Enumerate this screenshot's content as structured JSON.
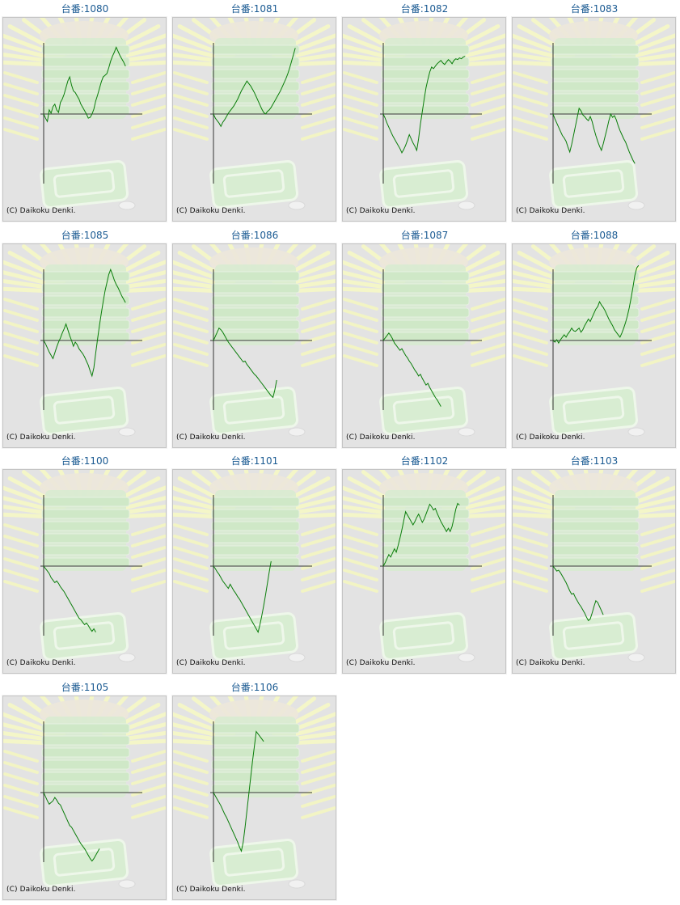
{
  "machines": [
    {
      "title": "台番:1080",
      "copyright": "(C) Daikoku Denki.",
      "series": [
        0,
        -0.5,
        -0.9,
        0.5,
        0.1,
        0.9,
        1.2,
        0.5,
        0.2,
        1.4,
        1.8,
        2.4,
        3.2,
        4.0,
        4.5,
        3.5,
        2.8,
        2.6,
        2.2,
        1.8,
        1.2,
        0.8,
        0.4,
        0.0,
        -0.5,
        -0.4,
        0.0,
        0.6,
        1.6,
        2.3,
        3.1,
        3.9,
        4.5,
        4.7,
        4.9,
        5.6,
        6.4,
        7.0,
        7.5,
        8.1,
        7.6,
        7.1,
        6.7,
        6.3,
        5.8
      ]
    },
    {
      "title": "台番:1081",
      "copyright": "(C) Daikoku Denki.",
      "series": [
        0,
        -0.5,
        -0.8,
        -1.1,
        -1.5,
        -1.0,
        -0.7,
        -0.3,
        0.1,
        0.4,
        0.7,
        1.0,
        1.4,
        1.8,
        2.3,
        2.8,
        3.2,
        3.6,
        4.0,
        3.7,
        3.4,
        3.0,
        2.6,
        2.1,
        1.6,
        1.1,
        0.6,
        0.2,
        0.0,
        0.3,
        0.5,
        0.8,
        1.2,
        1.6,
        2.0,
        2.4,
        2.8,
        3.3,
        3.8,
        4.3,
        4.9,
        5.6,
        6.4,
        7.2,
        8.0
      ]
    },
    {
      "title": "台番:1082",
      "copyright": "(C) Daikoku Denki.",
      "series": [
        0,
        -0.5,
        -1.1,
        -1.6,
        -2.1,
        -2.6,
        -3.0,
        -3.4,
        -3.8,
        -4.2,
        -4.7,
        -4.3,
        -3.8,
        -3.2,
        -2.5,
        -3.0,
        -3.5,
        -3.9,
        -4.4,
        -3.0,
        -1.2,
        0.3,
        1.8,
        3.2,
        4.2,
        5.1,
        5.7,
        5.5,
        5.8,
        6.1,
        6.3,
        6.5,
        6.2,
        6.0,
        6.3,
        6.6,
        6.4,
        6.1,
        6.5,
        6.7,
        6.6,
        6.8,
        6.7,
        6.9,
        7.0
      ]
    },
    {
      "title": "台番:1083",
      "copyright": "(C) Daikoku Denki.",
      "series": [
        0,
        -0.6,
        -1.1,
        -1.6,
        -2.1,
        -2.6,
        -2.9,
        -3.3,
        -4.0,
        -4.6,
        -3.7,
        -2.6,
        -1.5,
        -0.4,
        0.7,
        0.4,
        -0.1,
        -0.3,
        -0.6,
        -0.8,
        -0.3,
        -0.9,
        -1.8,
        -2.6,
        -3.3,
        -3.9,
        -4.4,
        -3.6,
        -2.7,
        -1.8,
        -0.8,
        0.0,
        -0.4,
        -0.2,
        -0.7,
        -1.4,
        -2.0,
        -2.5,
        -3.0,
        -3.4,
        -4.0,
        -4.6,
        -5.1,
        -5.6,
        -6.0
      ]
    },
    {
      "title": "台番:1085",
      "copyright": "(C) Daikoku Denki.",
      "series": [
        0,
        -0.4,
        -0.9,
        -1.4,
        -1.8,
        -2.2,
        -1.5,
        -0.8,
        -0.2,
        0.3,
        0.9,
        1.4,
        2.0,
        1.3,
        0.6,
        0.0,
        -0.7,
        -0.2,
        -0.5,
        -1.0,
        -1.3,
        -1.6,
        -2.0,
        -2.5,
        -3.0,
        -3.7,
        -4.3,
        -3.3,
        -1.5,
        0.2,
        1.8,
        3.3,
        4.7,
        6.0,
        7.0,
        8.0,
        8.6,
        8.0,
        7.3,
        6.8,
        6.4,
        5.9,
        5.4,
        5.0,
        4.6
      ]
    },
    {
      "title": "台番:1086",
      "copyright": "(C) Daikoku Denki.",
      "series": [
        0,
        0.5,
        1.0,
        1.5,
        1.3,
        1.0,
        0.6,
        0.2,
        -0.2,
        -0.5,
        -0.8,
        -1.1,
        -1.4,
        -1.7,
        -2.0,
        -2.3,
        -2.6,
        -2.5,
        -2.9,
        -3.2,
        -3.5,
        -3.8,
        -4.1,
        -4.3,
        -4.6,
        -4.9,
        -5.2,
        -5.5,
        -5.8,
        -6.1,
        -6.4,
        -6.7,
        -6.9,
        -6.0,
        -4.8
      ]
    },
    {
      "title": "台番:1087",
      "copyright": "(C) Daikoku Denki.",
      "series": [
        0,
        0.3,
        0.6,
        0.9,
        0.6,
        0.2,
        -0.3,
        -0.6,
        -0.9,
        -1.2,
        -1.0,
        -1.4,
        -1.8,
        -2.1,
        -2.5,
        -2.8,
        -3.2,
        -3.6,
        -3.9,
        -4.3,
        -4.1,
        -4.6,
        -5.0,
        -5.4,
        -5.2,
        -5.7,
        -6.1,
        -6.5,
        -6.9,
        -7.2,
        -7.6,
        -8.0
      ]
    },
    {
      "title": "台番:1088",
      "copyright": "(C) Daikoku Denki.",
      "series": [
        0,
        -0.2,
        0.1,
        -0.3,
        0.1,
        0.4,
        0.7,
        0.4,
        0.8,
        1.1,
        1.5,
        1.2,
        1.1,
        1.3,
        1.5,
        1.0,
        1.3,
        1.8,
        2.2,
        2.6,
        2.3,
        2.8,
        3.3,
        3.8,
        4.1,
        4.7,
        4.3,
        4.0,
        3.6,
        3.1,
        2.6,
        2.2,
        1.8,
        1.3,
        1.0,
        0.7,
        0.4,
        0.9,
        1.5,
        2.2,
        3.0,
        4.0,
        5.2,
        6.5,
        7.9,
        8.8,
        9.1
      ]
    },
    {
      "title": "台番:1100",
      "copyright": "(C) Daikoku Denki.",
      "series": [
        0,
        -0.3,
        -0.6,
        -0.9,
        -1.4,
        -1.7,
        -2.0,
        -1.8,
        -2.1,
        -2.5,
        -2.8,
        -3.1,
        -3.5,
        -3.9,
        -4.3,
        -4.7,
        -5.1,
        -5.5,
        -5.9,
        -6.3,
        -6.5,
        -6.8,
        -7.1,
        -6.9,
        -7.2,
        -7.6,
        -7.9,
        -7.6,
        -8.0
      ]
    },
    {
      "title": "台番:1101",
      "copyright": "(C) Daikoku Denki.",
      "series": [
        0,
        -0.3,
        -0.7,
        -1.0,
        -1.4,
        -1.8,
        -2.1,
        -2.4,
        -2.7,
        -2.2,
        -2.6,
        -3.0,
        -3.3,
        -3.7,
        -4.0,
        -4.4,
        -4.8,
        -5.2,
        -5.6,
        -6.0,
        -6.4,
        -6.8,
        -7.2,
        -7.6,
        -8.0,
        -7.1,
        -6.0,
        -4.8,
        -3.5,
        -2.1,
        -0.7,
        0.6
      ]
    },
    {
      "title": "台番:1102",
      "copyright": "(C) Daikoku Denki.",
      "series": [
        0,
        0.4,
        0.9,
        1.4,
        1.1,
        1.6,
        2.1,
        1.7,
        2.5,
        3.4,
        4.4,
        5.5,
        6.6,
        6.2,
        5.8,
        5.4,
        5.0,
        5.4,
        5.9,
        6.3,
        5.8,
        5.3,
        5.7,
        6.3,
        6.9,
        7.5,
        7.2,
        6.8,
        7.0,
        6.4,
        5.9,
        5.4,
        5.0,
        4.6,
        4.2,
        4.6,
        4.2,
        4.8,
        5.8,
        6.9,
        7.6,
        7.4
      ]
    },
    {
      "title": "台番:1103",
      "copyright": "(C) Daikoku Denki.",
      "series": [
        0,
        -0.3,
        -0.6,
        -0.5,
        -0.8,
        -1.2,
        -1.6,
        -2.0,
        -2.5,
        -3.0,
        -3.4,
        -3.3,
        -3.8,
        -4.2,
        -4.6,
        -4.9,
        -5.3,
        -5.7,
        -6.2,
        -6.6,
        -6.4,
        -5.7,
        -4.9,
        -4.2,
        -4.4,
        -4.9,
        -5.4,
        -5.9
      ]
    },
    {
      "title": "台番:1105",
      "copyright": "(C) Daikoku Denki.",
      "series": [
        0,
        -0.5,
        -1.0,
        -1.4,
        -1.2,
        -1.0,
        -0.6,
        -0.9,
        -1.3,
        -1.5,
        -2.0,
        -2.5,
        -3.0,
        -3.5,
        -4.0,
        -4.2,
        -4.6,
        -5.0,
        -5.4,
        -5.8,
        -6.2,
        -6.5,
        -6.8,
        -7.2,
        -7.6,
        -8.0,
        -8.3,
        -8.0,
        -7.6,
        -7.2,
        -6.8
      ]
    },
    {
      "title": "台番:1106",
      "copyright": "(C) Daikoku Denki.",
      "series": [
        0,
        -0.4,
        -0.8,
        -1.2,
        -1.6,
        -2.1,
        -2.6,
        -3.0,
        -3.5,
        -4.0,
        -4.5,
        -5.0,
        -5.5,
        -6.0,
        -6.6,
        -7.1,
        -6.0,
        -4.2,
        -2.2,
        -0.2,
        1.8,
        3.8,
        5.6,
        7.4,
        7.1,
        6.8,
        6.5,
        6.2
      ]
    }
  ],
  "colors": {
    "line": "#0a7d0a",
    "axis": "#333333",
    "title": "#1a5a92",
    "panel": "#e3e3e3"
  }
}
